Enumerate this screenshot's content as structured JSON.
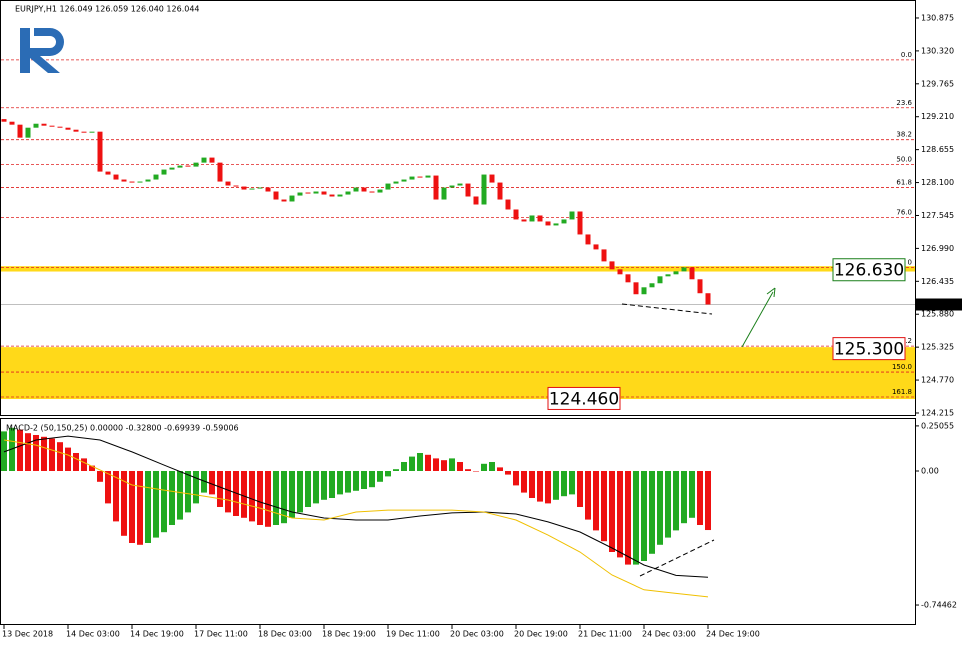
{
  "chart_data": [
    {
      "type": "candlestick",
      "title": "EURJPY,H1  126.049 126.059 126.040 126.044",
      "up_color": "#22aa22",
      "down_color": "#ee1111",
      "open": 129.17,
      "close": [
        129.126,
        129.076,
        128.857,
        129.025,
        129.092,
        129.059,
        129.042,
        129.025,
        128.991,
        128.958,
        128.941,
        128.958,
        128.285,
        128.235,
        128.151,
        128.117,
        128.1,
        128.117,
        128.151,
        128.235,
        128.319,
        128.352,
        128.386,
        128.369,
        128.436,
        128.521,
        128.436,
        128.117,
        128.05,
        128.033,
        127.982,
        127.999,
        128.016,
        127.949,
        127.814,
        127.781,
        127.881,
        127.932,
        127.915,
        127.949,
        127.898,
        127.865,
        127.898,
        127.949,
        128.016,
        127.949,
        127.932,
        127.982,
        128.083,
        128.117,
        128.151,
        128.201,
        128.184,
        128.218,
        127.814,
        128.016,
        128.05,
        128.083,
        127.865,
        127.73,
        128.235,
        128.1,
        127.814,
        127.646,
        127.478,
        127.444,
        127.545,
        127.444,
        127.377,
        127.411,
        127.478,
        127.612,
        127.225,
        127.057,
        126.973,
        126.771,
        126.637,
        126.553,
        126.418,
        126.217,
        126.334,
        126.402,
        126.519,
        126.553,
        126.603,
        126.67,
        126.469,
        126.234,
        126.044
      ],
      "xlim": [
        -0.5,
        113.875
      ],
      "xticks": [
        {
          "value": 0,
          "label": "13 Dec 2018"
        },
        {
          "value": 8,
          "label": "14 Dec 03:00"
        },
        {
          "value": 16,
          "label": "14 Dec 19:00"
        },
        {
          "value": 24,
          "label": "17 Dec 11:00"
        },
        {
          "value": 32,
          "label": "18 Dec 03:00"
        },
        {
          "value": 40,
          "label": "18 Dec 19:00"
        },
        {
          "value": 48,
          "label": "19 Dec 11:00"
        },
        {
          "value": 56,
          "label": "20 Dec 03:00"
        },
        {
          "value": 64,
          "label": "20 Dec 19:00"
        },
        {
          "value": 72,
          "label": "21 Dec 11:00"
        },
        {
          "value": 80,
          "label": "24 Dec 03:00"
        },
        {
          "value": 88,
          "label": "24 Dec 19:00"
        }
      ],
      "ylim": [
        124.181,
        131.178
      ],
      "yticks": [
        130.875,
        {
          "value": 130.32,
          "label": "130.320"
        },
        129.765,
        {
          "value": 129.21,
          "label": "129.210"
        },
        128.655,
        {
          "value": 128.1,
          "label": "128.100"
        },
        127.545,
        {
          "value": 126.99,
          "label": "126.990"
        },
        126.435,
        {
          "value": 125.88,
          "label": "125.880"
        },
        125.325,
        {
          "value": 124.77,
          "label": "124.770"
        },
        124.215
      ],
      "level_color": "#e02020",
      "levels": [
        {
          "value": 130.169,
          "label": "0.0"
        },
        {
          "value": 129.361,
          "label": "23.6"
        },
        {
          "value": 128.823,
          "label": "38.2"
        },
        {
          "value": 128.403,
          "label": "50.0"
        },
        {
          "value": 128.016,
          "label": "61.8"
        },
        {
          "value": 127.511,
          "label": "76.0"
        },
        {
          "value": 126.67,
          "label": "0"
        },
        {
          "value": 125.342,
          "label": ".2"
        },
        {
          "value": 124.905,
          "label": "150.0"
        },
        {
          "value": 124.484,
          "label": "161.8"
        }
      ],
      "zone_color": "#ffd500",
      "zones": [
        {
          "from": 126.6,
          "to": 126.69
        },
        {
          "from": 124.45,
          "to": 125.325
        }
      ],
      "boxes": [
        {
          "value": 126.63,
          "label": "126.630",
          "color": "#1a7f1a"
        },
        {
          "value": 125.3,
          "label": "125.300",
          "color": "#e01010"
        },
        {
          "value": 124.46,
          "label": "124.460",
          "color": "#e01010"
        }
      ],
      "current": {
        "value": 126.044,
        "label": "126.044"
      }
    },
    {
      "type": "bar",
      "title": "MACD-2 (50,150,25) 0.00000 -0.32800 -0.69939 -0.59006",
      "up_color": "#22aa22",
      "down_color": "#ee1111",
      "values": [
        0.22,
        0.24,
        0.23,
        0.21,
        0.2,
        0.19,
        0.18,
        0.16,
        0.13,
        0.1,
        0.07,
        0.03,
        -0.06,
        -0.18,
        -0.28,
        -0.36,
        -0.4,
        -0.41,
        -0.4,
        -0.37,
        -0.34,
        -0.3,
        -0.27,
        -0.23,
        -0.18,
        -0.12,
        -0.13,
        -0.2,
        -0.23,
        -0.25,
        -0.26,
        -0.28,
        -0.3,
        -0.31,
        -0.3,
        -0.29,
        -0.26,
        -0.23,
        -0.2,
        -0.18,
        -0.16,
        -0.15,
        -0.13,
        -0.12,
        -0.11,
        -0.1,
        -0.09,
        -0.06,
        -0.03,
        0.01,
        0.05,
        0.08,
        0.1,
        0.09,
        0.07,
        0.06,
        0.07,
        0.05,
        0.01,
        0.0,
        0.04,
        0.05,
        0.02,
        -0.02,
        -0.08,
        -0.12,
        -0.15,
        -0.17,
        -0.18,
        -0.16,
        -0.14,
        -0.13,
        -0.2,
        -0.27,
        -0.33,
        -0.39,
        -0.45,
        -0.48,
        -0.52,
        -0.52,
        -0.5,
        -0.46,
        -0.41,
        -0.37,
        -0.33,
        -0.29,
        -0.26,
        -0.3,
        -0.328
      ],
      "xlim": [
        -0.5,
        113.875
      ],
      "ylim": [
        -0.8556,
        0.2833
      ],
      "yticks": [
        0.25055,
        {
          "value": 0,
          "label": "0.00"
        },
        -0.74462
      ],
      "lines": [
        {
          "color": "#000000",
          "x": [
            0,
            4,
            8,
            12,
            16,
            20,
            24,
            28,
            32,
            36,
            40,
            44,
            48,
            52,
            56,
            60,
            64,
            68,
            72,
            76,
            80,
            84,
            88
          ],
          "values": [
            0.106,
            0.172,
            0.194,
            0.172,
            0.106,
            0.033,
            -0.039,
            -0.106,
            -0.172,
            -0.228,
            -0.261,
            -0.272,
            -0.272,
            -0.25,
            -0.233,
            -0.228,
            -0.239,
            -0.283,
            -0.339,
            -0.428,
            -0.522,
            -0.58,
            -0.59006
          ]
        },
        {
          "color": "#f0c000",
          "x": [
            0,
            4,
            8,
            12,
            16,
            20,
            24,
            28,
            32,
            36,
            40,
            44,
            48,
            52,
            56,
            60,
            64,
            68,
            72,
            76,
            80,
            84,
            88
          ],
          "values": [
            0.172,
            0.144,
            0.089,
            0.006,
            -0.078,
            -0.106,
            -0.133,
            -0.161,
            -0.206,
            -0.261,
            -0.272,
            -0.228,
            -0.217,
            -0.217,
            -0.217,
            -0.228,
            -0.272,
            -0.356,
            -0.45,
            -0.578,
            -0.66,
            -0.68,
            -0.69939
          ]
        }
      ]
    }
  ]
}
